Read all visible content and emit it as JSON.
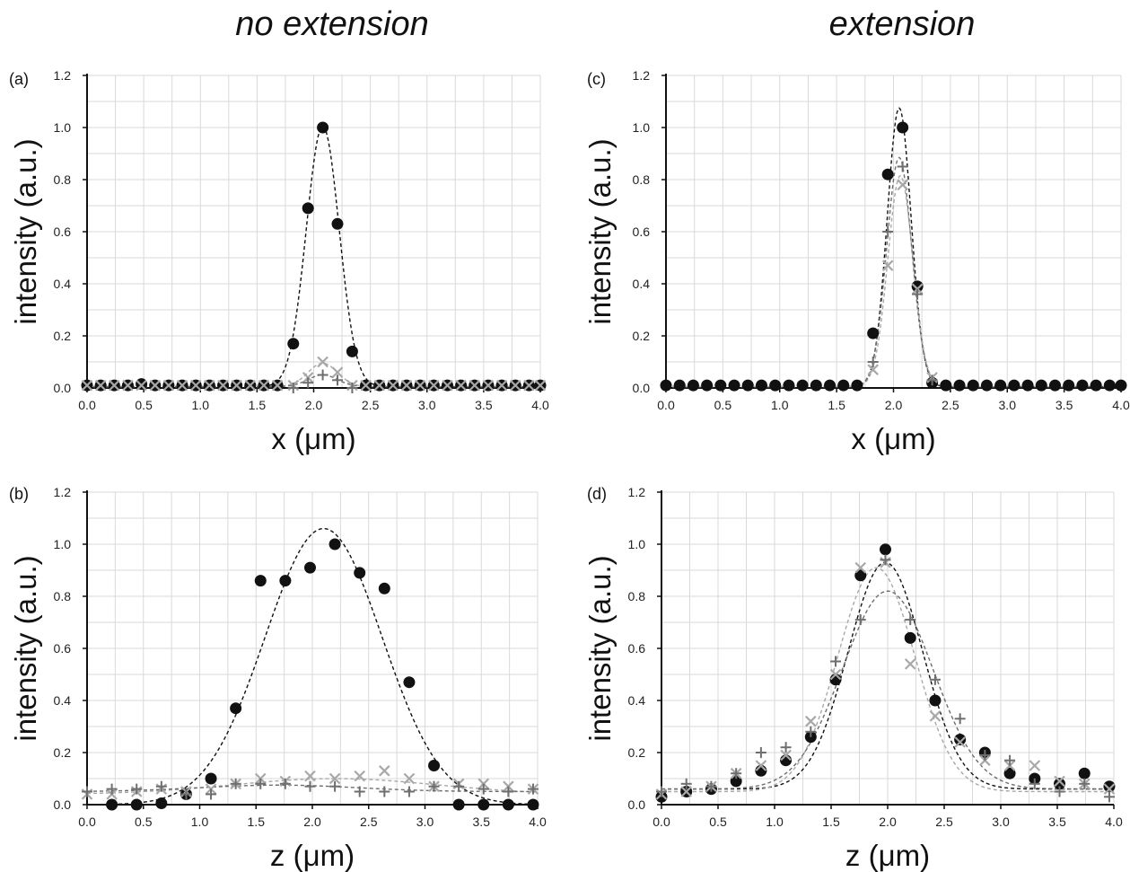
{
  "column_titles": {
    "left": "no extension",
    "right": "extension"
  },
  "colors": {
    "black": "#111111",
    "dark_gray": "#6e6e6e",
    "light_gray": "#a8a8a8"
  },
  "chart_data": [
    {
      "id": "a",
      "panel_label": "(a)",
      "type": "scatter",
      "xlabel": "x (μm)",
      "ylabel": "intensity (a.u.)",
      "xlim": [
        0,
        4
      ],
      "ylim": [
        0,
        1.2
      ],
      "xticks": [
        "0.0",
        "0.5",
        "1.0",
        "1.5",
        "2.0",
        "2.5",
        "3.0",
        "3.5",
        "4.0"
      ],
      "yticks": [
        "0.0",
        "0.2",
        "0.4",
        "0.6",
        "0.8",
        "1.0",
        "1.2"
      ],
      "grid": true,
      "series": [
        {
          "marker": "circle",
          "color": "#111111",
          "x": [
            0,
            0.12,
            0.24,
            0.36,
            0.48,
            0.6,
            0.72,
            0.84,
            0.96,
            1.08,
            1.2,
            1.32,
            1.44,
            1.56,
            1.68,
            1.82,
            1.95,
            2.08,
            2.21,
            2.34,
            2.46,
            2.58,
            2.7,
            2.82,
            2.94,
            3.06,
            3.18,
            3.3,
            3.42,
            3.54,
            3.66,
            3.78,
            3.9,
            4.0
          ],
          "y": [
            0.01,
            0.01,
            0.01,
            0.01,
            0.015,
            0.01,
            0.01,
            0.01,
            0.01,
            0.01,
            0.01,
            0.01,
            0.01,
            0.01,
            0.01,
            0.17,
            0.69,
            1.0,
            0.63,
            0.14,
            0.01,
            0.01,
            0.01,
            0.01,
            0.01,
            0.01,
            0.01,
            0.01,
            0.01,
            0.01,
            0.01,
            0.01,
            0.01,
            0.01
          ]
        },
        {
          "marker": "x",
          "color": "#a8a8a8",
          "x": [
            0,
            0.12,
            0.24,
            0.36,
            0.48,
            0.6,
            0.72,
            0.84,
            0.96,
            1.08,
            1.2,
            1.32,
            1.44,
            1.56,
            1.68,
            1.82,
            1.95,
            2.08,
            2.21,
            2.34,
            2.46,
            2.58,
            2.7,
            2.82,
            2.94,
            3.06,
            3.18,
            3.3,
            3.42,
            3.54,
            3.66,
            3.78,
            3.9,
            4.0
          ],
          "y": [
            0.01,
            0.01,
            0.01,
            0.01,
            0.01,
            0.01,
            0.01,
            0.01,
            0.01,
            0.01,
            0.01,
            0.01,
            0.01,
            0.01,
            0.01,
            0.01,
            0.04,
            0.1,
            0.06,
            0.01,
            0.01,
            0.01,
            0.01,
            0.01,
            0.01,
            0.01,
            0.01,
            0.01,
            0.01,
            0.01,
            0.01,
            0.01,
            0.01,
            0.01
          ]
        },
        {
          "marker": "plus",
          "color": "#6e6e6e",
          "x": [
            1.82,
            1.95,
            2.08,
            2.21,
            2.34
          ],
          "y": [
            0.0,
            0.02,
            0.05,
            0.03,
            0.0
          ]
        }
      ],
      "fits": [
        {
          "color": "#111111",
          "amp": 1.0,
          "mu": 2.08,
          "sigma": 0.145,
          "base": 0.005
        },
        {
          "color": "#a8a8a8",
          "amp": 0.09,
          "mu": 2.08,
          "sigma": 0.13,
          "base": 0.005
        },
        {
          "color": "#6e6e6e",
          "amp": 0.045,
          "mu": 2.08,
          "sigma": 0.13,
          "base": 0.005
        }
      ]
    },
    {
      "id": "b",
      "panel_label": "(b)",
      "type": "scatter",
      "xlabel": "z (μm)",
      "ylabel": "intensity (a.u.)",
      "xlim": [
        0,
        4
      ],
      "ylim": [
        0,
        1.2
      ],
      "xticks": [
        "0.0",
        "0.5",
        "1.0",
        "1.5",
        "2.0",
        "2.5",
        "3.0",
        "3.5",
        "4.0"
      ],
      "yticks": [
        "0.0",
        "0.2",
        "0.4",
        "0.6",
        "0.8",
        "1.0",
        "1.2"
      ],
      "grid": true,
      "series": [
        {
          "marker": "circle",
          "color": "#111111",
          "x": [
            0.22,
            0.44,
            0.66,
            0.88,
            1.1,
            1.32,
            1.54,
            1.76,
            1.98,
            2.2,
            2.42,
            2.64,
            2.86,
            3.08,
            3.3,
            3.52,
            3.74,
            3.96
          ],
          "y": [
            0.0,
            0.0,
            0.005,
            0.04,
            0.1,
            0.37,
            0.86,
            0.86,
            0.91,
            1.0,
            0.89,
            0.83,
            0.47,
            0.15,
            0.0,
            0.0,
            0.0,
            0.0
          ]
        },
        {
          "marker": "x",
          "color": "#a8a8a8",
          "x": [
            0.0,
            0.22,
            0.44,
            0.66,
            0.88,
            1.1,
            1.32,
            1.54,
            1.76,
            1.98,
            2.2,
            2.42,
            2.64,
            2.86,
            3.08,
            3.3,
            3.52,
            3.74,
            3.96
          ],
          "y": [
            0.04,
            0.04,
            0.05,
            0.06,
            0.05,
            0.06,
            0.08,
            0.1,
            0.09,
            0.11,
            0.1,
            0.11,
            0.13,
            0.1,
            0.07,
            0.08,
            0.08,
            0.07,
            0.06
          ]
        },
        {
          "marker": "plus",
          "color": "#6e6e6e",
          "x": [
            0.0,
            0.22,
            0.44,
            0.66,
            0.88,
            1.1,
            1.32,
            1.54,
            1.76,
            1.98,
            2.2,
            2.42,
            2.64,
            2.86,
            3.08,
            3.3,
            3.52,
            3.74,
            3.96
          ],
          "y": [
            0.05,
            0.06,
            0.06,
            0.07,
            0.04,
            0.04,
            0.08,
            0.08,
            0.08,
            0.07,
            0.07,
            0.05,
            0.05,
            0.05,
            0.07,
            0.07,
            0.06,
            0.05,
            0.06
          ]
        }
      ],
      "fits": [
        {
          "color": "#111111",
          "amp": 1.06,
          "mu": 2.1,
          "sigma": 0.52,
          "base": 0.0
        },
        {
          "color": "#a8a8a8",
          "amp": 0.06,
          "mu": 2.2,
          "sigma": 0.9,
          "base": 0.04
        },
        {
          "color": "#6e6e6e",
          "amp": 0.025,
          "mu": 1.7,
          "sigma": 0.7,
          "base": 0.05
        }
      ]
    },
    {
      "id": "c",
      "panel_label": "(c)",
      "type": "scatter",
      "xlabel": "x (μm)",
      "ylabel": "intensity (a.u.)",
      "xlim": [
        0,
        4
      ],
      "ylim": [
        0,
        1.2
      ],
      "xticks": [
        "0.0",
        "0.5",
        "1.0",
        "1.5",
        "2.0",
        "2.5",
        "3.0",
        "3.5",
        "4.0"
      ],
      "yticks": [
        "0.0",
        "0.2",
        "0.4",
        "0.6",
        "0.8",
        "1.0",
        "1.2"
      ],
      "grid": true,
      "series": [
        {
          "marker": "circle",
          "color": "#111111",
          "x": [
            0,
            0.12,
            0.24,
            0.36,
            0.48,
            0.6,
            0.72,
            0.84,
            0.96,
            1.08,
            1.2,
            1.32,
            1.44,
            1.56,
            1.68,
            1.82,
            1.95,
            2.08,
            2.21,
            2.34,
            2.46,
            2.58,
            2.7,
            2.82,
            2.94,
            3.06,
            3.18,
            3.3,
            3.42,
            3.54,
            3.66,
            3.78,
            3.9,
            4.0
          ],
          "y": [
            0.01,
            0.01,
            0.01,
            0.01,
            0.01,
            0.01,
            0.01,
            0.01,
            0.01,
            0.01,
            0.01,
            0.01,
            0.01,
            0.01,
            0.01,
            0.21,
            0.82,
            1.0,
            0.39,
            0.02,
            0.01,
            0.01,
            0.01,
            0.01,
            0.01,
            0.01,
            0.01,
            0.01,
            0.01,
            0.01,
            0.01,
            0.01,
            0.01,
            0.01
          ]
        },
        {
          "marker": "x",
          "color": "#a8a8a8",
          "x": [
            1.82,
            1.95,
            2.08,
            2.21,
            2.34
          ],
          "y": [
            0.07,
            0.47,
            0.78,
            0.38,
            0.04
          ]
        },
        {
          "marker": "plus",
          "color": "#6e6e6e",
          "x": [
            1.82,
            1.95,
            2.08,
            2.21,
            2.34
          ],
          "y": [
            0.1,
            0.6,
            0.85,
            0.36,
            0.03
          ]
        }
      ],
      "fits": [
        {
          "color": "#111111",
          "amp": 1.07,
          "mu": 2.05,
          "sigma": 0.105,
          "base": 0.005
        },
        {
          "color": "#6e6e6e",
          "amp": 0.88,
          "mu": 2.05,
          "sigma": 0.11,
          "base": 0.005
        },
        {
          "color": "#a8a8a8",
          "amp": 0.81,
          "mu": 2.06,
          "sigma": 0.11,
          "base": 0.005
        }
      ]
    },
    {
      "id": "d",
      "panel_label": "(d)",
      "type": "scatter",
      "xlabel": "z (μm)",
      "ylabel": "intensity (a.u.)",
      "xlim": [
        0,
        4
      ],
      "ylim": [
        0,
        1.2
      ],
      "xticks": [
        "0.0",
        "0.5",
        "1.0",
        "1.5",
        "2.0",
        "2.5",
        "3.0",
        "3.5",
        "4.0"
      ],
      "yticks": [
        "0.0",
        "0.2",
        "0.4",
        "0.6",
        "0.8",
        "1.0",
        "1.2"
      ],
      "grid": true,
      "series": [
        {
          "marker": "circle",
          "color": "#111111",
          "x": [
            0.0,
            0.22,
            0.44,
            0.66,
            0.88,
            1.1,
            1.32,
            1.54,
            1.76,
            1.98,
            2.2,
            2.42,
            2.64,
            2.86,
            3.08,
            3.3,
            3.52,
            3.74,
            3.96
          ],
          "y": [
            0.03,
            0.05,
            0.06,
            0.09,
            0.13,
            0.17,
            0.26,
            0.48,
            0.88,
            0.98,
            0.64,
            0.4,
            0.25,
            0.2,
            0.12,
            0.1,
            0.08,
            0.12,
            0.07
          ]
        },
        {
          "marker": "x",
          "color": "#a8a8a8",
          "x": [
            0.0,
            0.22,
            0.44,
            0.66,
            0.88,
            1.1,
            1.32,
            1.54,
            1.76,
            1.98,
            2.2,
            2.42,
            2.64,
            2.86,
            3.08,
            3.3,
            3.52,
            3.74,
            3.96
          ],
          "y": [
            0.04,
            0.05,
            0.07,
            0.12,
            0.15,
            0.19,
            0.32,
            0.5,
            0.91,
            0.93,
            0.54,
            0.34,
            0.24,
            0.17,
            0.15,
            0.15,
            0.09,
            0.08,
            0.06
          ]
        },
        {
          "marker": "plus",
          "color": "#6e6e6e",
          "x": [
            0.0,
            0.22,
            0.44,
            0.66,
            0.88,
            1.1,
            1.32,
            1.54,
            1.76,
            1.98,
            2.2,
            2.42,
            2.64,
            2.86,
            3.08,
            3.3,
            3.52,
            3.74,
            3.96
          ],
          "y": [
            0.05,
            0.08,
            0.07,
            0.12,
            0.2,
            0.22,
            0.28,
            0.55,
            0.71,
            0.94,
            0.71,
            0.48,
            0.33,
            0.19,
            0.17,
            0.08,
            0.05,
            0.08,
            0.03
          ]
        }
      ],
      "fits": [
        {
          "color": "#111111",
          "amp": 0.87,
          "mu": 1.98,
          "sigma": 0.33,
          "base": 0.06
        },
        {
          "color": "#a8a8a8",
          "amp": 0.86,
          "mu": 1.9,
          "sigma": 0.34,
          "base": 0.05
        },
        {
          "color": "#6e6e6e",
          "amp": 0.76,
          "mu": 2.0,
          "sigma": 0.4,
          "base": 0.06
        }
      ]
    }
  ]
}
